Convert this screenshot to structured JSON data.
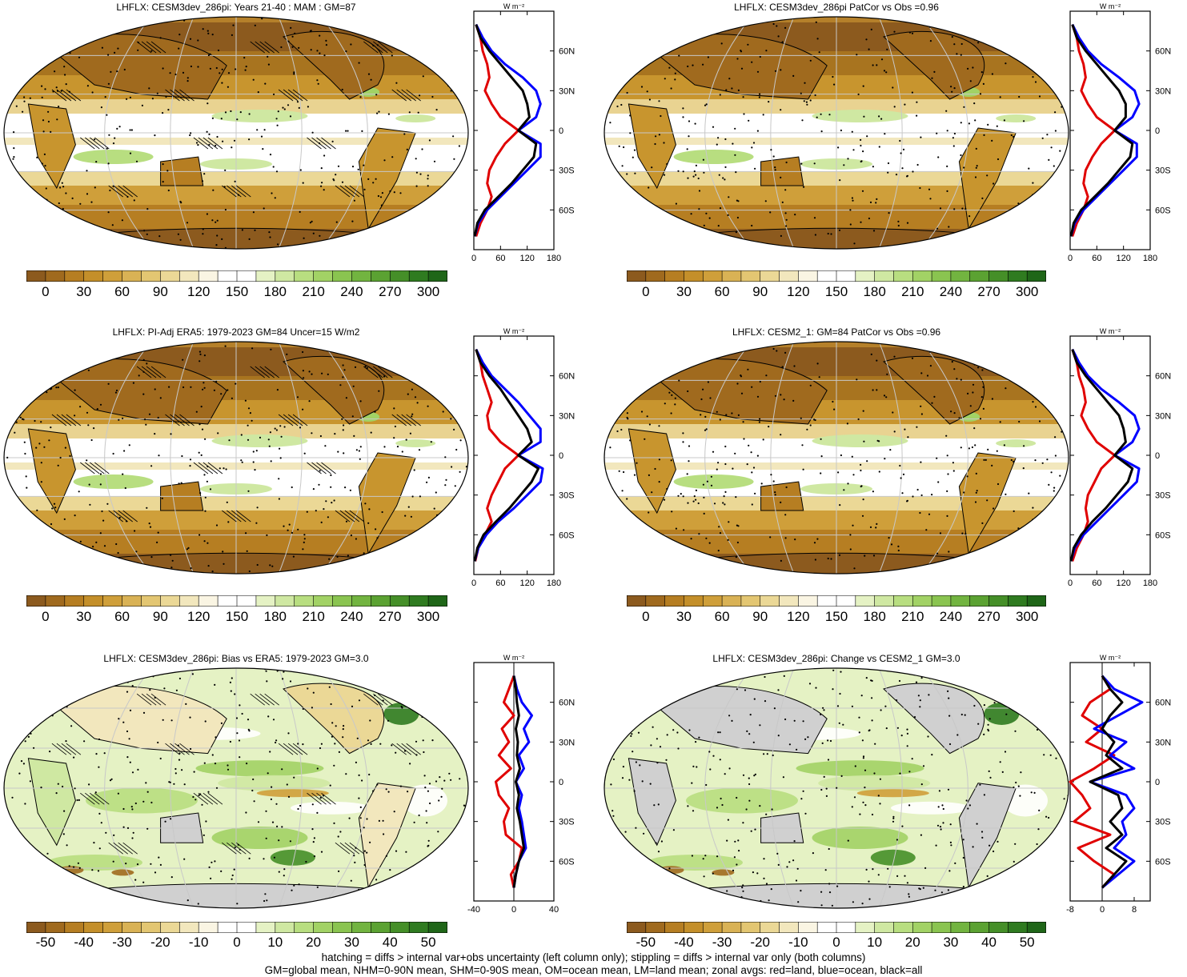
{
  "panels": [
    {
      "id": "p1",
      "title": "LHFLX: CESM3dev_286pi: Years 21-40 : MAM : GM=87",
      "kind": "abs",
      "colorbar_labels": [
        "0",
        "30",
        "60",
        "90",
        "120",
        "150",
        "180",
        "210",
        "240",
        "270",
        "300"
      ],
      "zonal": {
        "unit": "W m⁻²",
        "x_ticks": [
          "0",
          "60",
          "120",
          "180"
        ],
        "x_range": [
          0,
          180
        ],
        "lat_ticks": [
          "60N",
          "30N",
          "0",
          "30S",
          "60S"
        ],
        "series": [
          {
            "color": "#e00000",
            "lat": [
              80,
              70,
              60,
              50,
              40,
              30,
              20,
              10,
              0,
              -10,
              -20,
              -30,
              -40,
              -50,
              -60,
              -70,
              -80
            ],
            "values": [
              5,
              15,
              20,
              30,
              35,
              25,
              40,
              60,
              100,
              70,
              50,
              35,
              30,
              40,
              30,
              15,
              5
            ]
          },
          {
            "color": "#0000ff",
            "lat": [
              80,
              70,
              60,
              50,
              40,
              30,
              20,
              10,
              0,
              -10,
              -20,
              -30,
              -40,
              -50,
              -60,
              -70,
              -80
            ],
            "values": [
              5,
              20,
              40,
              70,
              110,
              140,
              150,
              140,
              100,
              150,
              150,
              120,
              90,
              60,
              30,
              10,
              2
            ]
          },
          {
            "color": "#000000",
            "lat": [
              80,
              70,
              60,
              50,
              40,
              30,
              20,
              10,
              0,
              -10,
              -20,
              -30,
              -40,
              -50,
              -60,
              -70,
              -80
            ],
            "values": [
              5,
              15,
              35,
              60,
              85,
              110,
              120,
              125,
              100,
              140,
              135,
              110,
              85,
              55,
              25,
              8,
              2
            ]
          }
        ]
      }
    },
    {
      "id": "p2",
      "title": "LHFLX: CESM3dev_286pi PatCor vs Obs =0.96",
      "kind": "abs",
      "colorbar_labels": [
        "0",
        "30",
        "60",
        "90",
        "120",
        "150",
        "180",
        "210",
        "240",
        "270",
        "300"
      ],
      "zonal": {
        "unit": "W m⁻²",
        "x_ticks": [
          "0",
          "60",
          "120",
          "180"
        ],
        "x_range": [
          0,
          180
        ],
        "lat_ticks": [
          "60N",
          "30N",
          "0",
          "30S",
          "60S"
        ],
        "series": [
          {
            "color": "#e00000",
            "lat": [
              80,
              70,
              60,
              50,
              40,
              30,
              20,
              10,
              0,
              -10,
              -20,
              -30,
              -40,
              -50,
              -60,
              -70,
              -80
            ],
            "values": [
              5,
              15,
              20,
              30,
              35,
              25,
              40,
              60,
              100,
              70,
              50,
              35,
              30,
              40,
              30,
              15,
              5
            ]
          },
          {
            "color": "#0000ff",
            "lat": [
              80,
              70,
              60,
              50,
              40,
              30,
              20,
              10,
              0,
              -10,
              -20,
              -30,
              -40,
              -50,
              -60,
              -70,
              -80
            ],
            "values": [
              5,
              20,
              40,
              70,
              110,
              145,
              155,
              140,
              100,
              150,
              150,
              120,
              90,
              60,
              30,
              10,
              2
            ]
          },
          {
            "color": "#000000",
            "lat": [
              80,
              70,
              60,
              50,
              40,
              30,
              20,
              10,
              0,
              -10,
              -20,
              -30,
              -40,
              -50,
              -60,
              -70,
              -80
            ],
            "values": [
              5,
              15,
              35,
              60,
              85,
              110,
              125,
              125,
              100,
              140,
              135,
              110,
              85,
              55,
              25,
              8,
              2
            ]
          }
        ]
      }
    },
    {
      "id": "p3",
      "title": "LHFLX: PI-Adj ERA5: 1979-2023 GM=84 Uncer=15 W/m2",
      "kind": "abs",
      "colorbar_labels": [
        "0",
        "30",
        "60",
        "90",
        "120",
        "150",
        "180",
        "210",
        "240",
        "270",
        "300"
      ],
      "zonal": {
        "unit": "W m⁻²",
        "x_ticks": [
          "0",
          "60",
          "120",
          "180"
        ],
        "x_range": [
          0,
          180
        ],
        "lat_ticks": [
          "60N",
          "30N",
          "0",
          "30S",
          "60S"
        ],
        "series": [
          {
            "color": "#e00000",
            "lat": [
              80,
              70,
              60,
              50,
              40,
              30,
              20,
              10,
              0,
              -10,
              -20,
              -30,
              -40,
              -50,
              -60,
              -70,
              -80
            ],
            "values": [
              5,
              15,
              20,
              30,
              40,
              30,
              35,
              60,
              100,
              70,
              55,
              40,
              30,
              40,
              25,
              10,
              3
            ]
          },
          {
            "color": "#0000ff",
            "lat": [
              80,
              70,
              60,
              50,
              40,
              30,
              20,
              10,
              0,
              -10,
              -20,
              -30,
              -40,
              -50,
              -60,
              -70,
              -80
            ],
            "values": [
              5,
              20,
              40,
              70,
              100,
              125,
              150,
              150,
              100,
              155,
              150,
              120,
              90,
              55,
              28,
              10,
              2
            ]
          },
          {
            "color": "#000000",
            "lat": [
              80,
              70,
              60,
              50,
              40,
              30,
              20,
              10,
              0,
              -10,
              -20,
              -30,
              -40,
              -50,
              -60,
              -70,
              -80
            ],
            "values": [
              5,
              15,
              35,
              60,
              80,
              100,
              120,
              130,
              100,
              145,
              130,
              105,
              80,
              50,
              22,
              8,
              2
            ]
          }
        ]
      }
    },
    {
      "id": "p4",
      "title": "LHFLX: CESM2_1: GM=84 PatCor vs Obs =0.96",
      "kind": "abs",
      "colorbar_labels": [
        "0",
        "30",
        "60",
        "90",
        "120",
        "150",
        "180",
        "210",
        "240",
        "270",
        "300"
      ],
      "zonal": {
        "unit": "W m⁻²",
        "x_ticks": [
          "0",
          "60",
          "120",
          "180"
        ],
        "x_range": [
          0,
          180
        ],
        "lat_ticks": [
          "60N",
          "30N",
          "0",
          "30S",
          "60S"
        ],
        "series": [
          {
            "color": "#e00000",
            "lat": [
              80,
              70,
              60,
              50,
              40,
              30,
              20,
              10,
              0,
              -10,
              -20,
              -30,
              -40,
              -50,
              -60,
              -70,
              -80
            ],
            "values": [
              5,
              15,
              20,
              30,
              35,
              25,
              40,
              60,
              100,
              70,
              55,
              40,
              35,
              40,
              30,
              15,
              5
            ]
          },
          {
            "color": "#0000ff",
            "lat": [
              80,
              70,
              60,
              50,
              40,
              30,
              20,
              10,
              0,
              -10,
              -20,
              -30,
              -40,
              -50,
              -60,
              -70,
              -80
            ],
            "values": [
              5,
              20,
              40,
              70,
              110,
              145,
              155,
              140,
              100,
              155,
              150,
              120,
              90,
              60,
              30,
              10,
              2
            ]
          },
          {
            "color": "#000000",
            "lat": [
              80,
              70,
              60,
              50,
              40,
              30,
              20,
              10,
              0,
              -10,
              -20,
              -30,
              -40,
              -50,
              -60,
              -70,
              -80
            ],
            "values": [
              5,
              15,
              35,
              60,
              85,
              110,
              120,
              125,
              100,
              140,
              130,
              105,
              80,
              50,
              25,
              8,
              2
            ]
          }
        ]
      }
    },
    {
      "id": "p5",
      "title": "LHFLX: CESM3dev_286pi: Bias vs ERA5: 1979-2023 GM=3.0",
      "kind": "diff",
      "colorbar_labels": [
        "-50",
        "-40",
        "-30",
        "-20",
        "-10",
        "0",
        "10",
        "20",
        "30",
        "40",
        "50"
      ],
      "zonal": {
        "unit": "W m⁻²",
        "x_ticks": [
          "-40",
          "0",
          "40"
        ],
        "x_range": [
          -40,
          40
        ],
        "lat_ticks": [
          "60N",
          "30N",
          "0",
          "30S",
          "60S"
        ],
        "series": [
          {
            "color": "#e00000",
            "lat": [
              80,
              70,
              60,
              50,
              40,
              30,
              20,
              10,
              0,
              -10,
              -20,
              -30,
              -40,
              -50,
              -60,
              -70,
              -80
            ],
            "values": [
              0,
              -5,
              -10,
              0,
              -12,
              -5,
              -15,
              -3,
              -18,
              -15,
              -5,
              -10,
              -8,
              8,
              5,
              -3,
              0
            ]
          },
          {
            "color": "#0000ff",
            "lat": [
              80,
              70,
              60,
              50,
              40,
              30,
              20,
              10,
              0,
              -10,
              -20,
              -30,
              -40,
              -50,
              -60,
              -70,
              -80
            ],
            "values": [
              0,
              3,
              8,
              18,
              10,
              15,
              5,
              10,
              2,
              8,
              5,
              8,
              10,
              12,
              5,
              2,
              0
            ]
          },
          {
            "color": "#000000",
            "lat": [
              80,
              70,
              60,
              50,
              40,
              30,
              20,
              10,
              0,
              -10,
              -20,
              -30,
              -40,
              -50,
              -60,
              -70,
              -80
            ],
            "values": [
              0,
              2,
              3,
              5,
              2,
              4,
              3,
              6,
              2,
              5,
              3,
              6,
              8,
              10,
              5,
              2,
              0
            ]
          }
        ]
      }
    },
    {
      "id": "p6",
      "title": "LHFLX: CESM3dev_286pi: Change vs CESM2_1 GM=3.0",
      "kind": "diff",
      "colorbar_labels": [
        "-50",
        "-40",
        "-30",
        "-20",
        "-10",
        "0",
        "10",
        "20",
        "30",
        "40",
        "50"
      ],
      "zonal": {
        "unit": "W m⁻²",
        "x_ticks": [
          "-8",
          "0",
          "8"
        ],
        "x_range": [
          -8,
          12
        ],
        "lat_ticks": [
          "60N",
          "30N",
          "0",
          "30S",
          "60S"
        ],
        "series": [
          {
            "color": "#e00000",
            "lat": [
              80,
              70,
              60,
              50,
              40,
              30,
              20,
              10,
              0,
              -10,
              -20,
              -30,
              -40,
              -50,
              -60,
              -70,
              -80
            ],
            "values": [
              0,
              2,
              -3,
              -5,
              0,
              -4,
              3,
              -2,
              -8,
              -5,
              -3,
              -7,
              2,
              -6,
              -2,
              3,
              0
            ]
          },
          {
            "color": "#0000ff",
            "lat": [
              80,
              70,
              60,
              50,
              40,
              30,
              20,
              10,
              0,
              -10,
              -20,
              -30,
              -40,
              -50,
              -60,
              -70,
              -80
            ],
            "values": [
              0,
              3,
              10,
              4,
              -2,
              6,
              2,
              8,
              -3,
              6,
              8,
              5,
              6,
              3,
              8,
              4,
              0
            ]
          },
          {
            "color": "#000000",
            "lat": [
              80,
              70,
              60,
              50,
              40,
              30,
              20,
              10,
              0,
              -10,
              -20,
              -30,
              -40,
              -50,
              -60,
              -70,
              -80
            ],
            "values": [
              0,
              2,
              5,
              2,
              0,
              3,
              1,
              5,
              -3,
              4,
              5,
              2,
              5,
              1,
              6,
              3,
              0
            ]
          }
        ]
      }
    }
  ],
  "colormap": {
    "abs": [
      "#8c5a1e",
      "#a06a1e",
      "#b67e22",
      "#c48f2a",
      "#cf9f3a",
      "#d9b255",
      "#e3c672",
      "#ebd896",
      "#f2e7bd",
      "#faf5e3",
      "#ffffff",
      "#ffffff",
      "#e5f2c4",
      "#cfe8a2",
      "#b8de80",
      "#a2d265",
      "#8ac450",
      "#72b440",
      "#5ba232",
      "#458f28",
      "#2f7b20",
      "#1f6618"
    ],
    "diff": [
      "#8c5a1e",
      "#a06a1e",
      "#b67e22",
      "#c48f2a",
      "#cf9f3a",
      "#d9b255",
      "#e3c672",
      "#ebd896",
      "#f2e7bd",
      "#faf5e3",
      "#ffffff",
      "#ffffff",
      "#e5f2c4",
      "#cfe8a2",
      "#b8de80",
      "#a2d265",
      "#8ac450",
      "#72b440",
      "#5ba232",
      "#458f28",
      "#2f7b20",
      "#1f6618"
    ]
  },
  "footer": {
    "line1": "hatching = diffs > internal var+obs uncertainty (left column only); stippling = diffs > internal var only (both columns)",
    "line2": "GM=global mean, NHM=0-90N mean, SHM=0-90S mean, OM=ocean mean, LM=land mean; zonal avgs: red=land, blue=ocean, black=all"
  }
}
